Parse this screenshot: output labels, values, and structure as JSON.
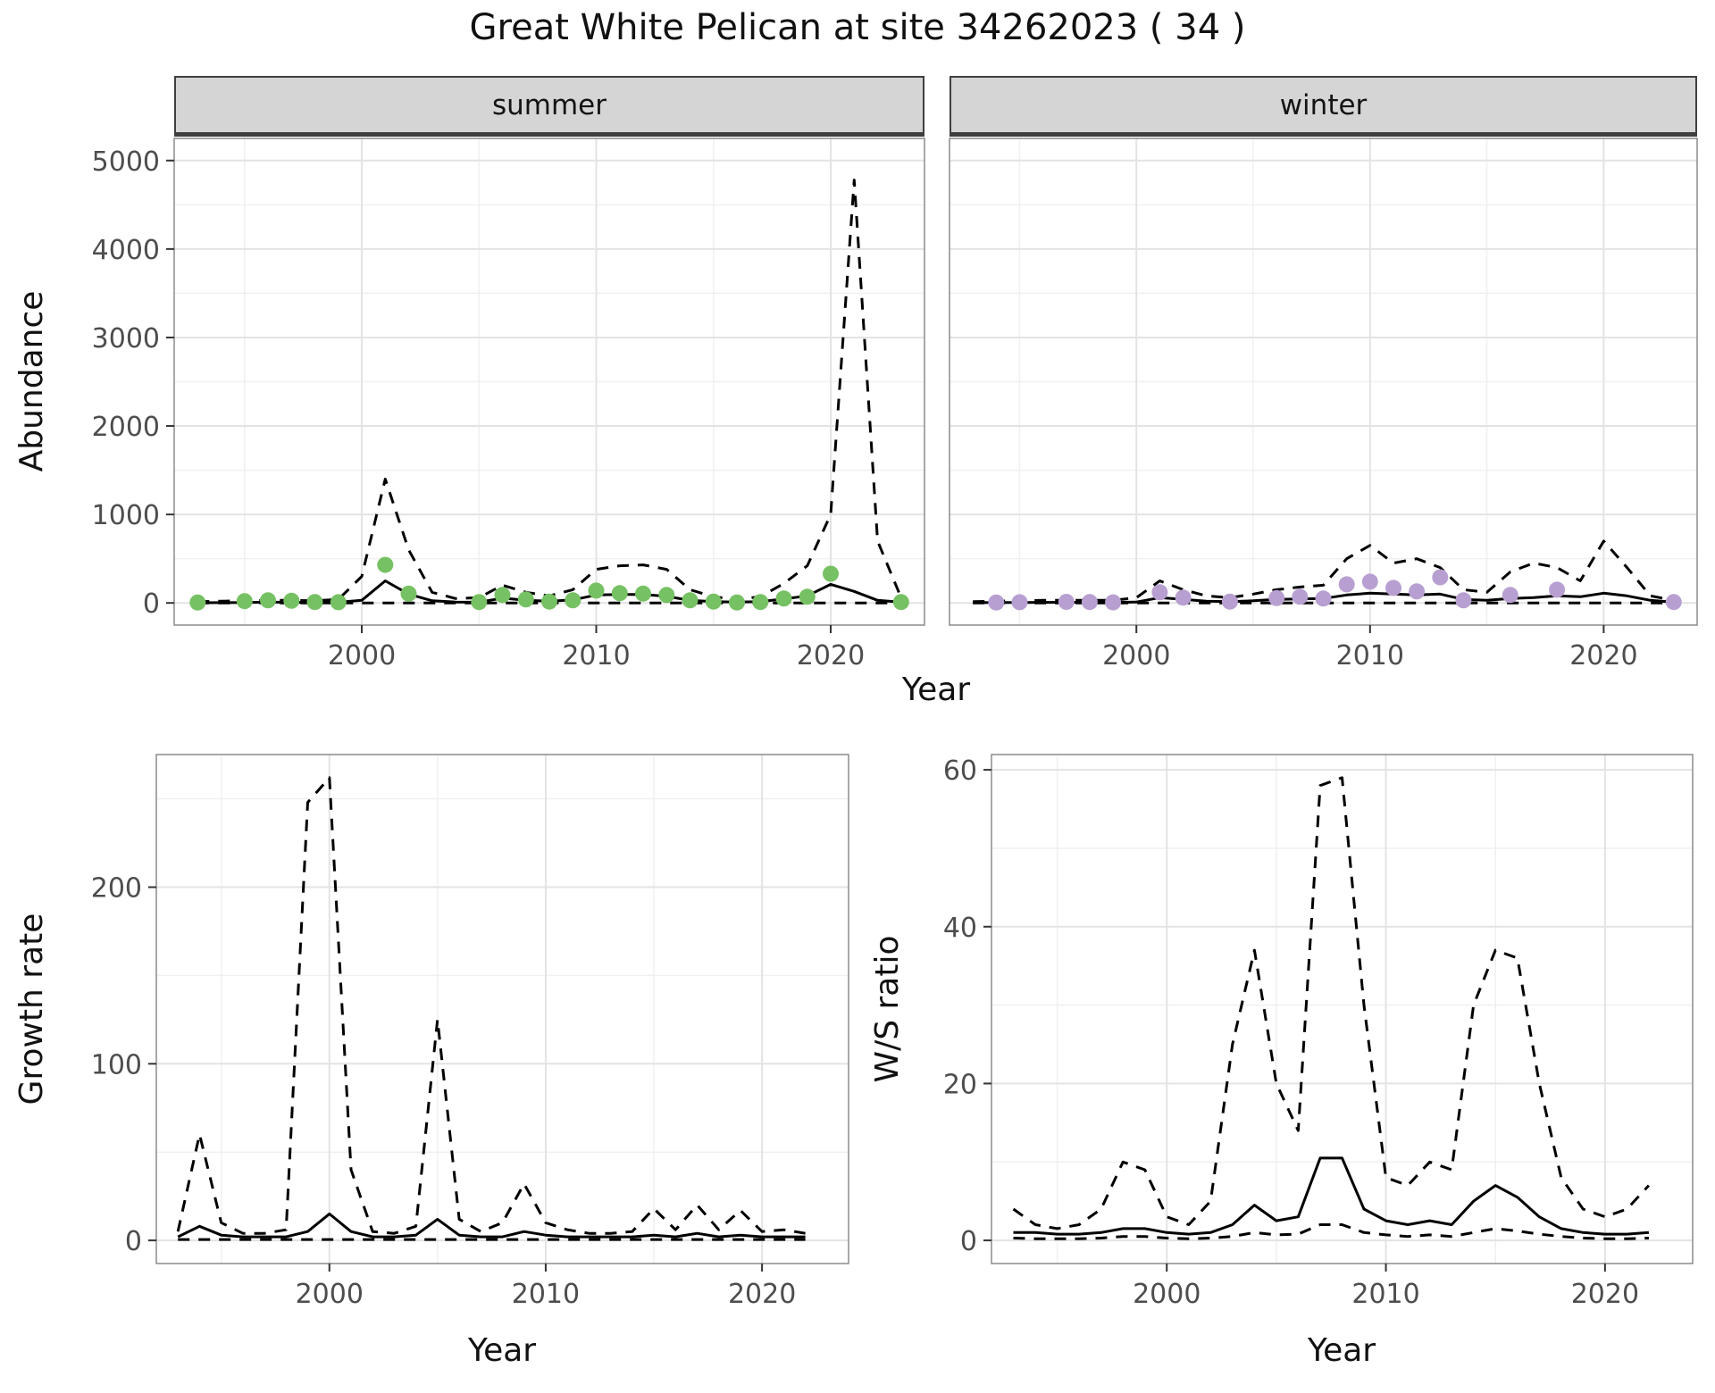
{
  "title": "Great White Pelican at site 34262023 ( 34 )",
  "labels": {
    "year": "Year",
    "abundance": "Abundance",
    "growth_rate": "Growth rate",
    "ws_ratio": "W/S ratio"
  },
  "facets": {
    "summer": "summer",
    "winter": "winter"
  },
  "style": {
    "summer_point_color": "#76c163",
    "winter_point_color": "#b89fd1",
    "line_color": "#000000",
    "strip_background": "#d5d5d5"
  },
  "chart_data": [
    {
      "id": "summer",
      "type": "line",
      "facet": "summer",
      "xlabel": "Year",
      "ylabel": "Abundance",
      "xlim": [
        1992,
        2024
      ],
      "ylim": [
        0,
        5000
      ],
      "xticks": [
        2000,
        2010,
        2020
      ],
      "yticks": [
        0,
        1000,
        2000,
        3000,
        4000,
        5000
      ],
      "series": [
        {
          "name": "upper_ci",
          "style": "dashed",
          "x": [
            1993,
            1994,
            1995,
            1996,
            1997,
            1998,
            1999,
            2000,
            2001,
            2002,
            2003,
            2004,
            2005,
            2006,
            2007,
            2008,
            2009,
            2010,
            2011,
            2012,
            2013,
            2014,
            2015,
            2016,
            2017,
            2018,
            2019,
            2020,
            2021,
            2022,
            2023
          ],
          "y": [
            15,
            20,
            25,
            30,
            30,
            25,
            40,
            300,
            1400,
            600,
            120,
            50,
            60,
            200,
            120,
            80,
            150,
            380,
            420,
            430,
            380,
            150,
            70,
            40,
            70,
            220,
            420,
            1000,
            4780,
            700,
            60
          ]
        },
        {
          "name": "lower_ci",
          "style": "dashed",
          "x": [
            1993,
            1994,
            1995,
            1996,
            1997,
            1998,
            1999,
            2000,
            2001,
            2002,
            2003,
            2004,
            2005,
            2006,
            2007,
            2008,
            2009,
            2010,
            2011,
            2012,
            2013,
            2014,
            2015,
            2016,
            2017,
            2018,
            2019,
            2020,
            2021,
            2022,
            2023
          ],
          "y": [
            0,
            0,
            0,
            0,
            0,
            0,
            0,
            0,
            0,
            0,
            0,
            0,
            0,
            0,
            0,
            0,
            0,
            0,
            0,
            0,
            0,
            0,
            0,
            0,
            0,
            0,
            0,
            0,
            0,
            0,
            0
          ]
        },
        {
          "name": "fitted",
          "style": "solid",
          "x": [
            1993,
            1994,
            1995,
            1996,
            1997,
            1998,
            1999,
            2000,
            2001,
            2002,
            2003,
            2004,
            2005,
            2006,
            2007,
            2008,
            2009,
            2010,
            2011,
            2012,
            2013,
            2014,
            2015,
            2016,
            2017,
            2018,
            2019,
            2020,
            2021,
            2022,
            2023
          ],
          "y": [
            2,
            3,
            5,
            8,
            8,
            6,
            8,
            30,
            250,
            100,
            25,
            10,
            8,
            55,
            30,
            20,
            35,
            90,
            95,
            95,
            75,
            30,
            15,
            10,
            15,
            45,
            80,
            210,
            130,
            30,
            8
          ]
        },
        {
          "name": "observed_counts",
          "style": "points",
          "color": "#76c163",
          "x": [
            1993,
            1995,
            1996,
            1997,
            1998,
            1999,
            2001,
            2002,
            2005,
            2006,
            2007,
            2008,
            2009,
            2010,
            2011,
            2012,
            2013,
            2014,
            2015,
            2016,
            2017,
            2018,
            2019,
            2020,
            2023
          ],
          "y": [
            5,
            20,
            30,
            25,
            10,
            8,
            430,
            105,
            10,
            90,
            40,
            15,
            30,
            140,
            110,
            105,
            90,
            30,
            15,
            5,
            10,
            50,
            70,
            330,
            10
          ]
        }
      ]
    },
    {
      "id": "winter",
      "type": "line",
      "facet": "winter",
      "xlabel": "Year",
      "ylabel": "",
      "xlim": [
        1992,
        2024
      ],
      "ylim": [
        0,
        5000
      ],
      "xticks": [
        2000,
        2010,
        2020
      ],
      "yticks": [
        0,
        1000,
        2000,
        3000,
        4000,
        5000
      ],
      "series": [
        {
          "name": "upper_ci",
          "style": "dashed",
          "x": [
            1993,
            1994,
            1995,
            1996,
            1997,
            1998,
            1999,
            2000,
            2001,
            2002,
            2003,
            2004,
            2005,
            2006,
            2007,
            2008,
            2009,
            2010,
            2011,
            2012,
            2013,
            2014,
            2015,
            2016,
            2017,
            2018,
            2019,
            2020,
            2021,
            2022,
            2023
          ],
          "y": [
            15,
            20,
            25,
            30,
            30,
            30,
            30,
            60,
            250,
            150,
            80,
            60,
            100,
            150,
            180,
            200,
            500,
            650,
            450,
            500,
            400,
            150,
            120,
            350,
            450,
            400,
            250,
            700,
            400,
            80,
            30
          ]
        },
        {
          "name": "lower_ci",
          "style": "dashed",
          "x": [
            1993,
            1994,
            1995,
            1996,
            1997,
            1998,
            1999,
            2000,
            2001,
            2002,
            2003,
            2004,
            2005,
            2006,
            2007,
            2008,
            2009,
            2010,
            2011,
            2012,
            2013,
            2014,
            2015,
            2016,
            2017,
            2018,
            2019,
            2020,
            2021,
            2022,
            2023
          ],
          "y": [
            0,
            0,
            0,
            0,
            0,
            0,
            0,
            0,
            0,
            0,
            0,
            0,
            0,
            0,
            0,
            0,
            0,
            0,
            0,
            0,
            0,
            0,
            0,
            0,
            0,
            0,
            0,
            0,
            0,
            0,
            0
          ]
        },
        {
          "name": "fitted",
          "style": "solid",
          "x": [
            1993,
            1994,
            1995,
            1996,
            1997,
            1998,
            1999,
            2000,
            2001,
            2002,
            2003,
            2004,
            2005,
            2006,
            2007,
            2008,
            2009,
            2010,
            2011,
            2012,
            2013,
            2014,
            2015,
            2016,
            2017,
            2018,
            2019,
            2020,
            2021,
            2022,
            2023
          ],
          "y": [
            3,
            4,
            5,
            6,
            7,
            7,
            6,
            10,
            60,
            40,
            20,
            15,
            25,
            40,
            45,
            50,
            90,
            110,
            100,
            90,
            100,
            40,
            30,
            50,
            60,
            80,
            70,
            110,
            80,
            30,
            8
          ]
        },
        {
          "name": "observed_counts",
          "style": "points",
          "color": "#b89fd1",
          "x": [
            1994,
            1995,
            1997,
            1998,
            1999,
            2001,
            2002,
            2004,
            2006,
            2007,
            2008,
            2009,
            2010,
            2011,
            2012,
            2013,
            2014,
            2016,
            2018,
            2023
          ],
          "y": [
            5,
            8,
            12,
            10,
            6,
            120,
            60,
            15,
            55,
            70,
            50,
            210,
            240,
            170,
            130,
            290,
            30,
            90,
            150,
            10
          ]
        }
      ]
    },
    {
      "id": "growth",
      "type": "line",
      "xlabel": "Year",
      "ylabel": "Growth rate",
      "xlim": [
        1992,
        2024
      ],
      "ylim": [
        0,
        262
      ],
      "xticks": [
        2000,
        2010,
        2020
      ],
      "yticks": [
        0,
        100,
        200
      ],
      "series": [
        {
          "name": "upper_ci",
          "style": "dashed",
          "x": [
            1993,
            1994,
            1995,
            1996,
            1997,
            1998,
            1999,
            2000,
            2001,
            2002,
            2003,
            2004,
            2005,
            2006,
            2007,
            2008,
            2009,
            2010,
            2011,
            2012,
            2013,
            2014,
            2015,
            2016,
            2017,
            2018,
            2019,
            2020,
            2021,
            2022
          ],
          "y": [
            5,
            60,
            10,
            4,
            4,
            6,
            248,
            262,
            40,
            5,
            4,
            8,
            125,
            12,
            5,
            10,
            32,
            10,
            6,
            4,
            4,
            5,
            18,
            6,
            20,
            6,
            17,
            5,
            6,
            4
          ]
        },
        {
          "name": "lower_ci",
          "style": "dashed",
          "x": [
            1993,
            1994,
            1995,
            1996,
            1997,
            1998,
            1999,
            2000,
            2001,
            2002,
            2003,
            2004,
            2005,
            2006,
            2007,
            2008,
            2009,
            2010,
            2011,
            2012,
            2013,
            2014,
            2015,
            2016,
            2017,
            2018,
            2019,
            2020,
            2021,
            2022
          ],
          "y": [
            0.5,
            0.5,
            0.5,
            0.5,
            0.5,
            0.5,
            0.5,
            0.5,
            0.5,
            0.5,
            0.5,
            0.5,
            0.5,
            0.5,
            0.5,
            0.5,
            0.5,
            0.5,
            0.5,
            0.5,
            0.5,
            0.5,
            0.5,
            0.5,
            0.5,
            0.5,
            0.5,
            0.5,
            0.5,
            0.5
          ]
        },
        {
          "name": "fitted",
          "style": "solid",
          "x": [
            1993,
            1994,
            1995,
            1996,
            1997,
            1998,
            1999,
            2000,
            2001,
            2002,
            2003,
            2004,
            2005,
            2006,
            2007,
            2008,
            2009,
            2010,
            2011,
            2012,
            2013,
            2014,
            2015,
            2016,
            2017,
            2018,
            2019,
            2020,
            2021,
            2022
          ],
          "y": [
            2,
            8,
            3,
            2,
            2,
            2,
            5,
            15,
            5,
            2,
            2,
            3,
            12,
            3,
            2,
            2,
            5,
            3,
            2,
            2,
            2,
            2,
            3,
            2,
            4,
            2,
            3,
            2,
            2,
            2
          ]
        }
      ]
    },
    {
      "id": "ratio",
      "type": "line",
      "xlabel": "Year",
      "ylabel": "W/S ratio",
      "xlim": [
        1992,
        2024
      ],
      "ylim": [
        0,
        59
      ],
      "xticks": [
        2000,
        2010,
        2020
      ],
      "yticks": [
        0,
        20,
        40,
        60
      ],
      "series": [
        {
          "name": "upper_ci",
          "style": "dashed",
          "x": [
            1993,
            1994,
            1995,
            1996,
            1997,
            1998,
            1999,
            2000,
            2001,
            2002,
            2003,
            2004,
            2005,
            2006,
            2007,
            2008,
            2009,
            2010,
            2011,
            2012,
            2013,
            2014,
            2015,
            2016,
            2017,
            2018,
            2019,
            2020,
            2021,
            2022
          ],
          "y": [
            4,
            2,
            1.5,
            2,
            4,
            10,
            9,
            3,
            2,
            5,
            25,
            37,
            20,
            14,
            58,
            59,
            30,
            8,
            7,
            10,
            9,
            30,
            37,
            36,
            20,
            8,
            4,
            3,
            4,
            7
          ]
        },
        {
          "name": "lower_ci",
          "style": "dashed",
          "x": [
            1993,
            1994,
            1995,
            1996,
            1997,
            1998,
            1999,
            2000,
            2001,
            2002,
            2003,
            2004,
            2005,
            2006,
            2007,
            2008,
            2009,
            2010,
            2011,
            2012,
            2013,
            2014,
            2015,
            2016,
            2017,
            2018,
            2019,
            2020,
            2021,
            2022
          ],
          "y": [
            0.3,
            0.2,
            0.2,
            0.2,
            0.3,
            0.5,
            0.5,
            0.3,
            0.2,
            0.3,
            0.5,
            1,
            0.7,
            0.8,
            2,
            2,
            1,
            0.7,
            0.5,
            0.7,
            0.5,
            1,
            1.5,
            1.2,
            0.8,
            0.5,
            0.3,
            0.2,
            0.2,
            0.3
          ]
        },
        {
          "name": "fitted",
          "style": "solid",
          "x": [
            1993,
            1994,
            1995,
            1996,
            1997,
            1998,
            1999,
            2000,
            2001,
            2002,
            2003,
            2004,
            2005,
            2006,
            2007,
            2008,
            2009,
            2010,
            2011,
            2012,
            2013,
            2014,
            2015,
            2016,
            2017,
            2018,
            2019,
            2020,
            2021,
            2022
          ],
          "y": [
            1,
            1,
            0.8,
            0.8,
            1,
            1.5,
            1.5,
            1,
            0.8,
            1,
            2,
            4.5,
            2.5,
            3,
            10.5,
            10.5,
            4,
            2.5,
            2,
            2.5,
            2,
            5,
            7,
            5.5,
            3,
            1.5,
            1,
            0.8,
            0.8,
            1
          ]
        }
      ]
    }
  ]
}
